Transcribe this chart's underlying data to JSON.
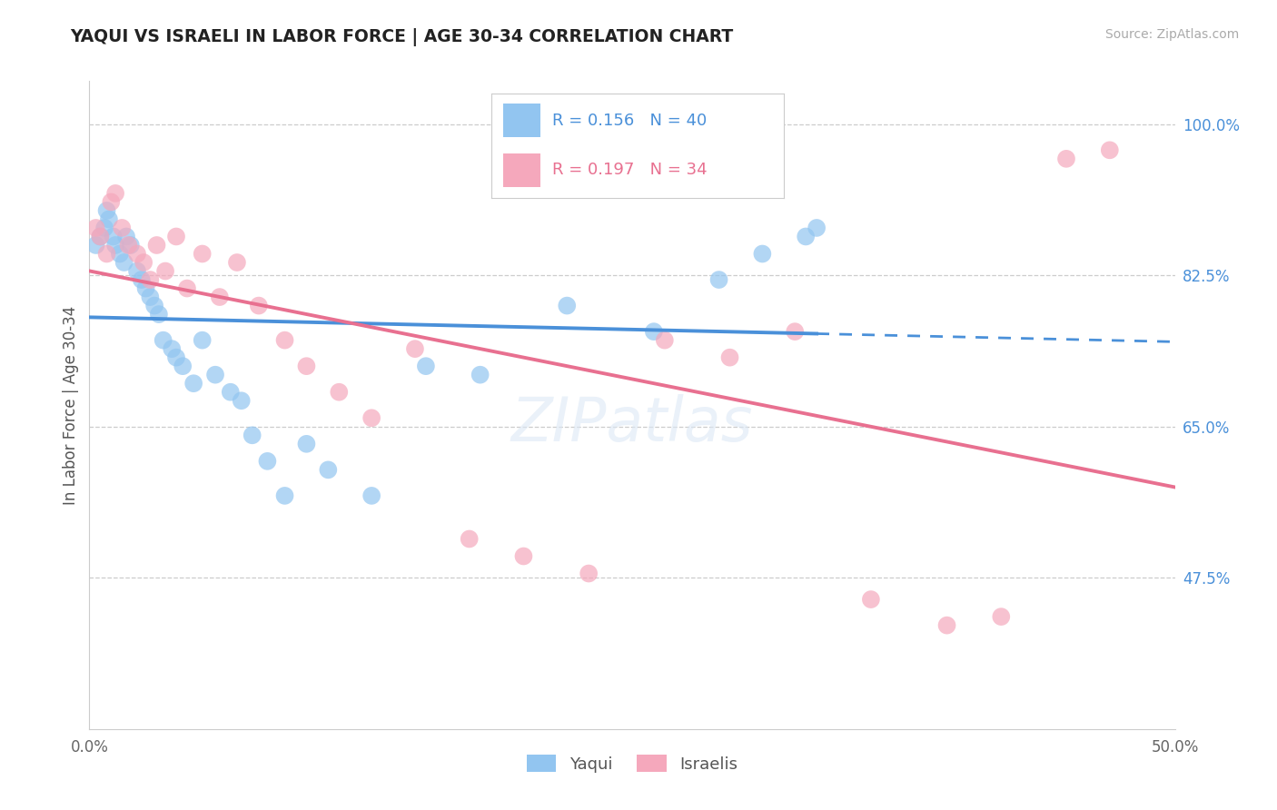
{
  "title": "YAQUI VS ISRAELI IN LABOR FORCE | AGE 30-34 CORRELATION CHART",
  "source_text": "Source: ZipAtlas.com",
  "ylabel": "In Labor Force | Age 30-34",
  "xlim": [
    0.0,
    0.5
  ],
  "ylim": [
    0.3,
    1.05
  ],
  "ytick_positions": [
    0.475,
    0.65,
    0.825,
    1.0
  ],
  "ytick_labels": [
    "47.5%",
    "65.0%",
    "82.5%",
    "100.0%"
  ],
  "yaqui_R": 0.156,
  "yaqui_N": 40,
  "israeli_R": 0.197,
  "israeli_N": 34,
  "yaqui_color": "#92c5f0",
  "israeli_color": "#f5a8bc",
  "trend_blue": "#4a90d9",
  "trend_pink": "#e87090",
  "yaqui_x": [
    0.003,
    0.005,
    0.007,
    0.008,
    0.009,
    0.011,
    0.012,
    0.014,
    0.016,
    0.017,
    0.019,
    0.022,
    0.024,
    0.026,
    0.028,
    0.03,
    0.032,
    0.034,
    0.038,
    0.04,
    0.043,
    0.048,
    0.052,
    0.058,
    0.065,
    0.07,
    0.075,
    0.082,
    0.09,
    0.1,
    0.11,
    0.13,
    0.155,
    0.18,
    0.22,
    0.26,
    0.29,
    0.31,
    0.33,
    0.335
  ],
  "yaqui_y": [
    0.86,
    0.87,
    0.88,
    0.9,
    0.89,
    0.87,
    0.86,
    0.85,
    0.84,
    0.87,
    0.86,
    0.83,
    0.82,
    0.81,
    0.8,
    0.79,
    0.78,
    0.75,
    0.74,
    0.73,
    0.72,
    0.7,
    0.75,
    0.71,
    0.69,
    0.68,
    0.64,
    0.61,
    0.57,
    0.63,
    0.6,
    0.57,
    0.72,
    0.71,
    0.79,
    0.76,
    0.82,
    0.85,
    0.87,
    0.88
  ],
  "israeli_x": [
    0.003,
    0.005,
    0.008,
    0.01,
    0.012,
    0.015,
    0.018,
    0.022,
    0.025,
    0.028,
    0.031,
    0.035,
    0.04,
    0.045,
    0.052,
    0.06,
    0.068,
    0.078,
    0.09,
    0.1,
    0.115,
    0.13,
    0.15,
    0.175,
    0.2,
    0.23,
    0.265,
    0.295,
    0.325,
    0.36,
    0.395,
    0.42,
    0.45,
    0.47
  ],
  "israeli_y": [
    0.88,
    0.87,
    0.85,
    0.91,
    0.92,
    0.88,
    0.86,
    0.85,
    0.84,
    0.82,
    0.86,
    0.83,
    0.87,
    0.81,
    0.85,
    0.8,
    0.84,
    0.79,
    0.75,
    0.72,
    0.69,
    0.66,
    0.74,
    0.52,
    0.5,
    0.48,
    0.75,
    0.73,
    0.76,
    0.45,
    0.42,
    0.43,
    0.96,
    0.97
  ]
}
